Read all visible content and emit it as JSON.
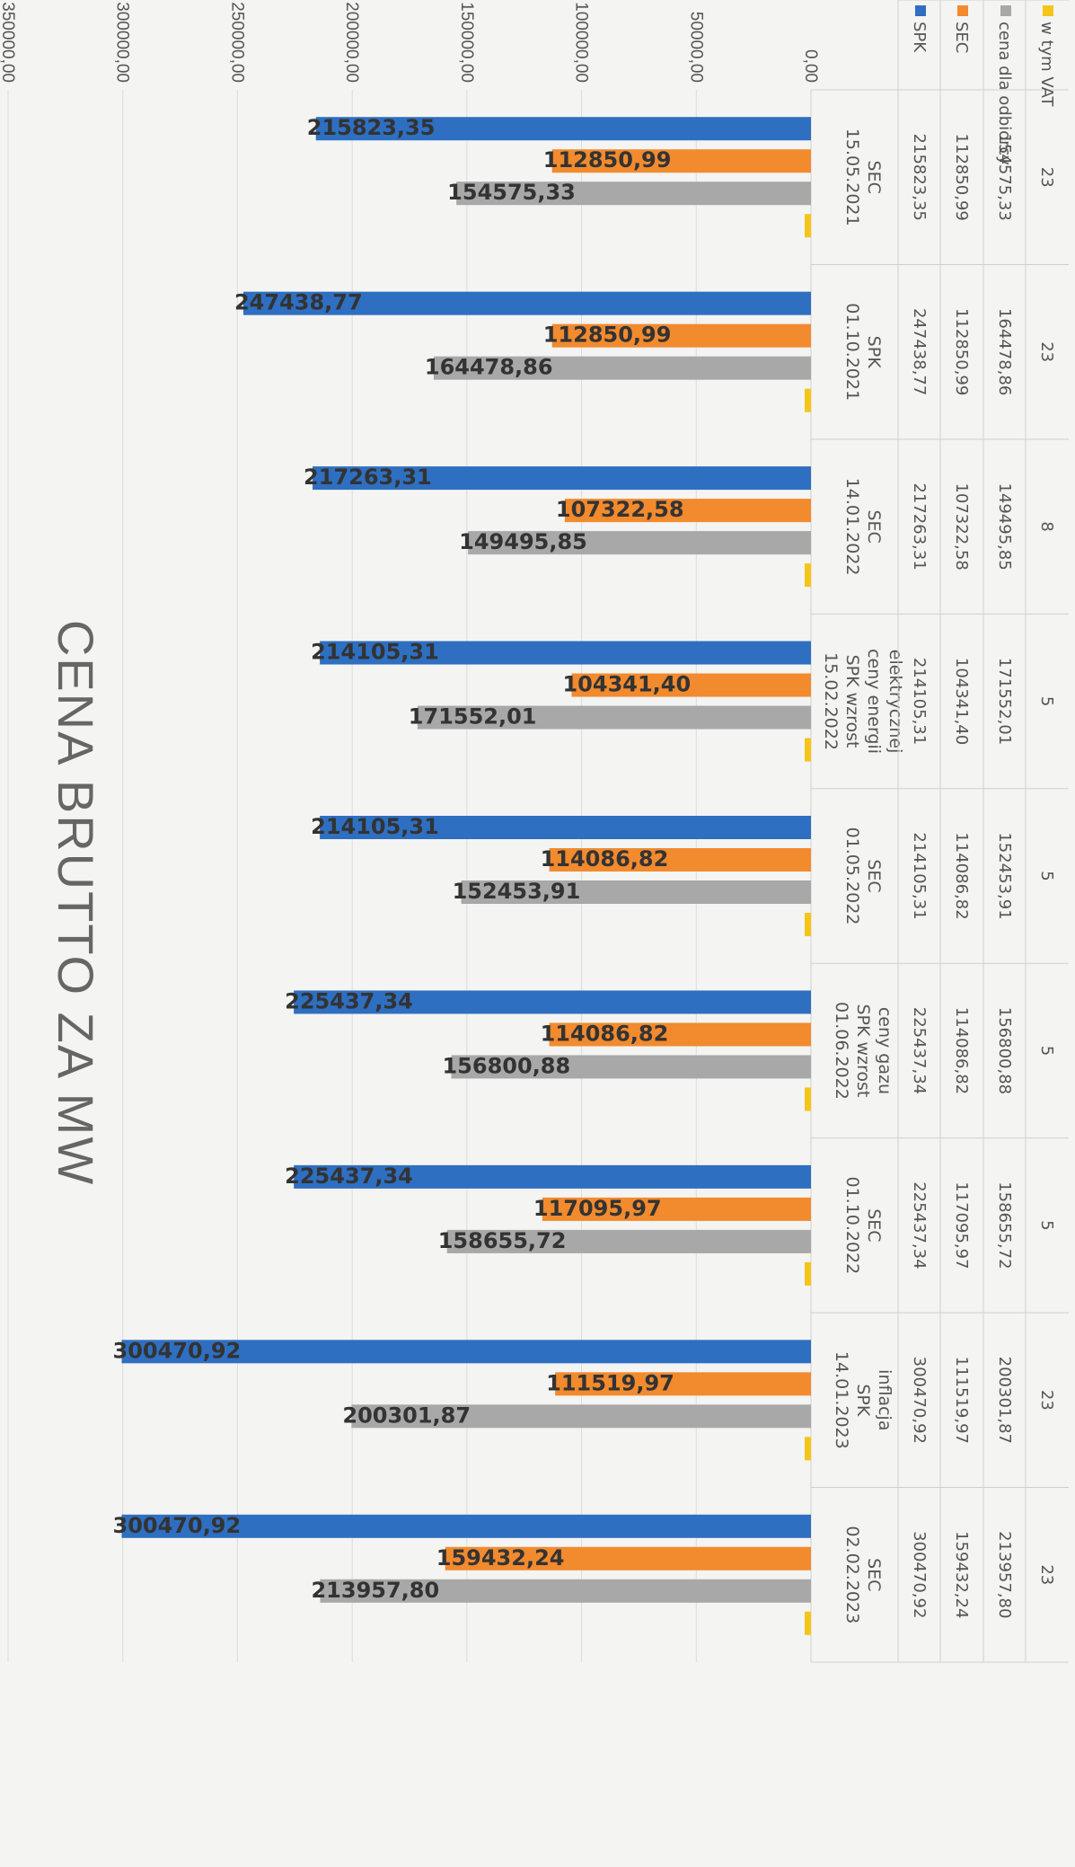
{
  "chart_data": {
    "type": "bar",
    "title": "CENA BRUTTO ZA MW",
    "orientation": "rotated-90-clockwise",
    "ylim": [
      0,
      350000
    ],
    "y_ticks": [
      "0,00",
      "50000,00",
      "100000,00",
      "150000,00",
      "200000,00",
      "250000,00",
      "300000,00",
      "350000,00"
    ],
    "categories": [
      [
        "15.05.2021",
        "SEC"
      ],
      [
        "01.10.2021",
        "SPK"
      ],
      [
        "14.01.2022",
        "SEC"
      ],
      [
        "15.02.2022",
        "SPK wzrost",
        "ceny energii",
        "elektrycznej"
      ],
      [
        "01.05.2022",
        "SEC"
      ],
      [
        "01.06.2022",
        "SPK wzrost",
        "ceny gazu"
      ],
      [
        "01.10.2022",
        "SEC"
      ],
      [
        "14.01.2023",
        "SPK",
        "inflacja"
      ],
      [
        "02.02.2023",
        "SEC"
      ]
    ],
    "series": [
      {
        "name": "SPK",
        "color": "#2e6fc1",
        "values": [
          215823.35,
          247438.77,
          217263.31,
          214105.31,
          214105.31,
          225437.34,
          225437.34,
          300470.92,
          300470.92
        ],
        "labels": [
          "215823,35",
          "247438,77",
          "217263,31",
          "214105,31",
          "214105,31",
          "225437,34",
          "225437,34",
          "300470,92",
          "300470,92"
        ]
      },
      {
        "name": "SEC",
        "color": "#f28a2e",
        "values": [
          112850.99,
          112850.99,
          107322.58,
          104341.4,
          114086.82,
          114086.82,
          117095.97,
          111519.97,
          159432.24
        ],
        "labels": [
          "112850,99",
          "112850,99",
          "107322,58",
          "104341,40",
          "114086,82",
          "114086,82",
          "117095,97",
          "111519,97",
          "159432,24"
        ]
      },
      {
        "name": "cena dla odbiorcy",
        "color": "#a8a8a8",
        "values": [
          154575.33,
          164478.86,
          149495.85,
          171552.01,
          152453.91,
          156800.88,
          158655.72,
          200301.87,
          213957.8
        ],
        "labels": [
          "154575,33",
          "164478,86",
          "149495,85",
          "171552,01",
          "152453,91",
          "156800,88",
          "158655,72",
          "200301,87",
          "213957,80"
        ]
      },
      {
        "name": "w tym VAT",
        "color": "#f5c518",
        "values": [
          23,
          23,
          8,
          5,
          5,
          5,
          5,
          23,
          23
        ],
        "labels": [
          "23",
          "23",
          "8",
          "5",
          "5",
          "5",
          "5",
          "23",
          "23"
        ]
      }
    ],
    "table_rows": [
      [
        "215823,35",
        "247438,77",
        "217263,31",
        "214105,31",
        "214105,31",
        "225437,34",
        "225437,34",
        "300470,92",
        "300470,92"
      ],
      [
        "112850,99",
        "112850,99",
        "107322,58",
        "104341,40",
        "114086,82",
        "114086,82",
        "117095,97",
        "111519,97",
        "159432,24"
      ],
      [
        "154575,33",
        "164478,86",
        "149495,85",
        "171552,01",
        "152453,91",
        "156800,88",
        "158655,72",
        "200301,87",
        "213957,80"
      ],
      [
        "23",
        "23",
        "8",
        "5",
        "5",
        "5",
        "5",
        "23",
        "23"
      ]
    ],
    "legend": [
      "SPK",
      "SEC",
      "cena dla odbiorcy",
      "w tym VAT"
    ],
    "grid": true
  }
}
